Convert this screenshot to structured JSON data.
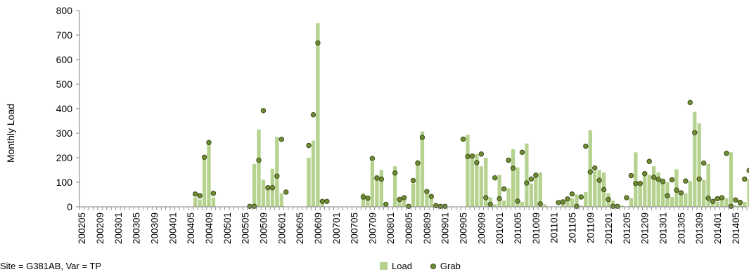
{
  "caption": "Site = G381AB, Var = TP",
  "colors": {
    "load": "#b5d28e",
    "grab_fill": "#6f8d35",
    "grab_stroke": "#3c4a16"
  },
  "chart_data": {
    "type": "bar",
    "ylabel": "Monthly Load",
    "xlabel": "",
    "ylim": [
      0,
      800
    ],
    "yticks": [
      0,
      100,
      200,
      300,
      400,
      500,
      600,
      700,
      800
    ],
    "start": "200205",
    "end": "201407",
    "tick_every_months": 4,
    "legend": {
      "position": "bottom-center",
      "items": [
        "Load",
        "Grab"
      ]
    },
    "series": [
      {
        "name": "Load",
        "kind": "bar",
        "points": [
          [
            "200406",
            38
          ],
          [
            "200407",
            30
          ],
          [
            "200408",
            200
          ],
          [
            "200409",
            255
          ],
          [
            "200410",
            38
          ],
          [
            "200506",
            5
          ],
          [
            "200507",
            175
          ],
          [
            "200508",
            315
          ],
          [
            "200509",
            110
          ],
          [
            "200510",
            80
          ],
          [
            "200511",
            155
          ],
          [
            "200512",
            285
          ],
          [
            "200601",
            55
          ],
          [
            "200607",
            200
          ],
          [
            "200608",
            270
          ],
          [
            "200609",
            748
          ],
          [
            "200610",
            20
          ],
          [
            "200707",
            55
          ],
          [
            "200708",
            45
          ],
          [
            "200709",
            185
          ],
          [
            "200710",
            130
          ],
          [
            "200711",
            150
          ],
          [
            "200802",
            165
          ],
          [
            "200803",
            30
          ],
          [
            "200804",
            40
          ],
          [
            "200805",
            5
          ],
          [
            "200806",
            95
          ],
          [
            "200807",
            190
          ],
          [
            "200808",
            307
          ],
          [
            "200809",
            62
          ],
          [
            "200810",
            42
          ],
          [
            "200906",
            293
          ],
          [
            "200907",
            205
          ],
          [
            "200908",
            215
          ],
          [
            "200909",
            165
          ],
          [
            "200910",
            200
          ],
          [
            "200911",
            38
          ],
          [
            "200912",
            10
          ],
          [
            "201001",
            130
          ],
          [
            "201002",
            25
          ],
          [
            "201003",
            75
          ],
          [
            "201004",
            235
          ],
          [
            "201005",
            160
          ],
          [
            "201006",
            20
          ],
          [
            "201007",
            258
          ],
          [
            "201008",
            95
          ],
          [
            "201009",
            140
          ],
          [
            "201010",
            140
          ],
          [
            "201011",
            10
          ],
          [
            "201103",
            15
          ],
          [
            "201104",
            25
          ],
          [
            "201105",
            35
          ],
          [
            "201106",
            50
          ],
          [
            "201107",
            5
          ],
          [
            "201108",
            60
          ],
          [
            "201109",
            312
          ],
          [
            "201110",
            145
          ],
          [
            "201111",
            150
          ],
          [
            "201112",
            140
          ],
          [
            "201201",
            55
          ],
          [
            "201202",
            25
          ],
          [
            "201203",
            5
          ],
          [
            "201204",
            5
          ],
          [
            "201206",
            35
          ],
          [
            "201207",
            222
          ],
          [
            "201208",
            105
          ],
          [
            "201209",
            140
          ],
          [
            "201210",
            130
          ],
          [
            "201211",
            165
          ],
          [
            "201212",
            140
          ],
          [
            "201301",
            115
          ],
          [
            "201302",
            100
          ],
          [
            "201303",
            40
          ],
          [
            "201304",
            153
          ],
          [
            "201305",
            65
          ],
          [
            "201306",
            55
          ],
          [
            "201307",
            105
          ],
          [
            "201308",
            387
          ],
          [
            "201309",
            340
          ],
          [
            "201310",
            110
          ],
          [
            "201311",
            175
          ],
          [
            "201312",
            30
          ],
          [
            "201401",
            20
          ],
          [
            "201402",
            30
          ],
          [
            "201403",
            35
          ],
          [
            "201404",
            222
          ],
          [
            "201405",
            5
          ],
          [
            "201406",
            25
          ],
          [
            "201407",
            20
          ],
          [
            "201408",
            110
          ],
          [
            "201409",
            138
          ]
        ]
      },
      {
        "name": "Grab",
        "kind": "point",
        "points": [
          [
            "200406",
            52
          ],
          [
            "200407",
            45
          ],
          [
            "200408",
            202
          ],
          [
            "200409",
            262
          ],
          [
            "200410",
            55
          ],
          [
            "200506",
            2
          ],
          [
            "200507",
            2
          ],
          [
            "200508",
            190
          ],
          [
            "200509",
            392
          ],
          [
            "200510",
            78
          ],
          [
            "200511",
            78
          ],
          [
            "200512",
            125
          ],
          [
            "200601",
            275
          ],
          [
            "200602",
            60
          ],
          [
            "200607",
            250
          ],
          [
            "200608",
            375
          ],
          [
            "200609",
            668
          ],
          [
            "200610",
            22
          ],
          [
            "200611",
            22
          ],
          [
            "200707",
            40
          ],
          [
            "200708",
            35
          ],
          [
            "200709",
            197
          ],
          [
            "200710",
            117
          ],
          [
            "200711",
            113
          ],
          [
            "200712",
            10
          ],
          [
            "200802",
            138
          ],
          [
            "200803",
            30
          ],
          [
            "200804",
            37
          ],
          [
            "200805",
            2
          ],
          [
            "200806",
            107
          ],
          [
            "200807",
            178
          ],
          [
            "200808",
            283
          ],
          [
            "200809",
            62
          ],
          [
            "200810",
            42
          ],
          [
            "200811",
            5
          ],
          [
            "200812",
            2
          ],
          [
            "200901",
            2
          ],
          [
            "200905",
            276
          ],
          [
            "200906",
            205
          ],
          [
            "200907",
            207
          ],
          [
            "200908",
            180
          ],
          [
            "200909",
            215
          ],
          [
            "200910",
            37
          ],
          [
            "200911",
            10
          ],
          [
            "200912",
            118
          ],
          [
            "201001",
            33
          ],
          [
            "201002",
            73
          ],
          [
            "201003",
            190
          ],
          [
            "201004",
            157
          ],
          [
            "201005",
            23
          ],
          [
            "201006",
            222
          ],
          [
            "201007",
            97
          ],
          [
            "201008",
            113
          ],
          [
            "201009",
            128
          ],
          [
            "201010",
            12
          ],
          [
            "201102",
            17
          ],
          [
            "201103",
            20
          ],
          [
            "201104",
            32
          ],
          [
            "201105",
            52
          ],
          [
            "201106",
            2
          ],
          [
            "201107",
            40
          ],
          [
            "201108",
            247
          ],
          [
            "201109",
            142
          ],
          [
            "201110",
            158
          ],
          [
            "201111",
            108
          ],
          [
            "201112",
            70
          ],
          [
            "201201",
            30
          ],
          [
            "201202",
            2
          ],
          [
            "201203",
            2
          ],
          [
            "201205",
            37
          ],
          [
            "201206",
            127
          ],
          [
            "201207",
            95
          ],
          [
            "201208",
            95
          ],
          [
            "201209",
            135
          ],
          [
            "201210",
            185
          ],
          [
            "201211",
            120
          ],
          [
            "201212",
            112
          ],
          [
            "201301",
            103
          ],
          [
            "201302",
            45
          ],
          [
            "201303",
            110
          ],
          [
            "201304",
            68
          ],
          [
            "201305",
            57
          ],
          [
            "201306",
            105
          ],
          [
            "201307",
            425
          ],
          [
            "201308",
            302
          ],
          [
            "201309",
            113
          ],
          [
            "201310",
            178
          ],
          [
            "201311",
            35
          ],
          [
            "201312",
            22
          ],
          [
            "201401",
            33
          ],
          [
            "201402",
            37
          ],
          [
            "201403",
            218
          ],
          [
            "201404",
            2
          ],
          [
            "201405",
            28
          ],
          [
            "201406",
            18
          ],
          [
            "201407",
            113
          ],
          [
            "201408",
            148
          ]
        ]
      }
    ]
  }
}
